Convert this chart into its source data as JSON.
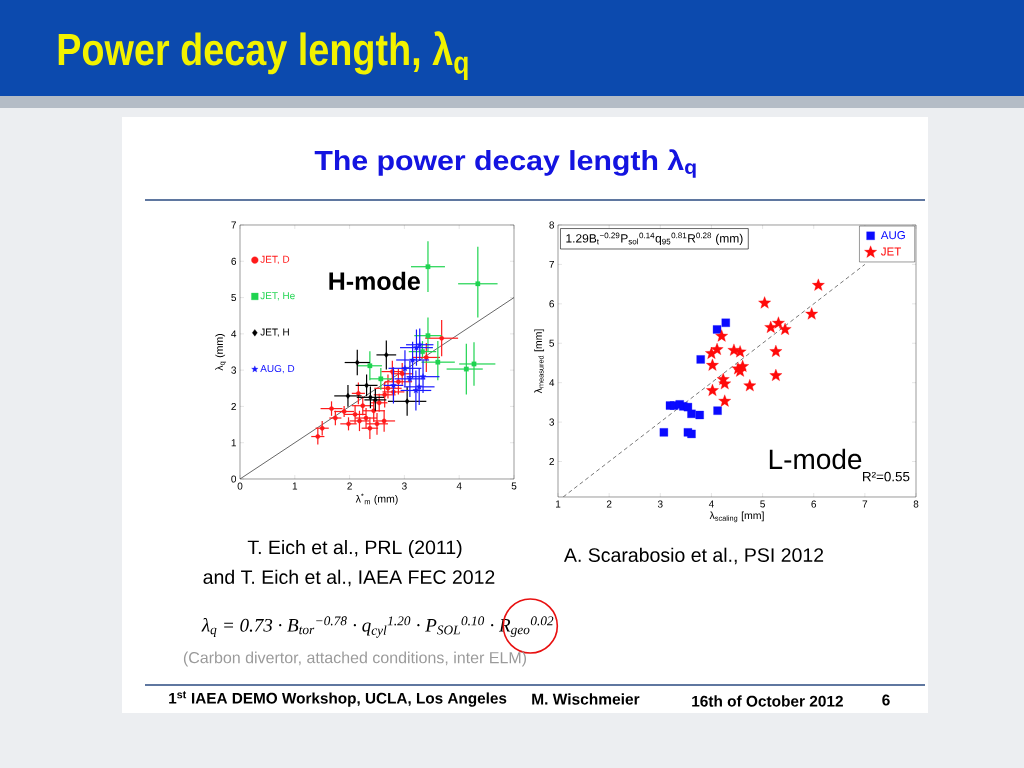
{
  "chart_data": [
    {
      "type": "scatter",
      "title": "Power decay length, λ$_{q}$",
      "subtitle": "The power decay length λ$_{q}$",
      "xlabel": "λ$^{*}$$_{m}$ (mm)",
      "ylabel": "λ$_{q}$ (mm)",
      "xlim": [
        0,
        5
      ],
      "ylim": [
        0,
        7
      ],
      "xticks": [
        0,
        1,
        2,
        3,
        4,
        5
      ],
      "yticks": [
        0,
        1,
        2,
        3,
        4,
        5,
        6,
        7
      ],
      "legend": "top left",
      "series": [
        {
          "type": "line",
          "color": "#404040",
          "marker": "none",
          "line_style": "solid",
          "x": [
            0,
            5
          ],
          "values": [
            0,
            5
          ]
        },
        {
          "name": "JET, D",
          "color": "#ff1a1a",
          "marker": "circle",
          "x": [
            1.42,
            1.5,
            1.67,
            1.74,
            1.9,
            1.98,
            2.1,
            2.24,
            2.3,
            2.18,
            2.37,
            2.44,
            2.5,
            2.63,
            2.16,
            2.64,
            2.7,
            2.78,
            2.89,
            2.96,
            3.4,
            3.68,
            2.8,
            2.54
          ],
          "values": [
            1.17,
            1.4,
            1.94,
            1.68,
            1.86,
            1.52,
            1.78,
            2.02,
            1.68,
            1.6,
            1.4,
            1.88,
            1.52,
            1.6,
            2.36,
            2.32,
            2.5,
            2.96,
            2.68,
            2.9,
            3.35,
            3.88,
            2.4,
            2.1
          ],
          "xerrors": [
            0.12,
            0.12,
            0.2,
            0.11,
            0.18,
            0.15,
            0.2,
            0.2,
            0.2,
            0.18,
            0.15,
            0.2,
            0.2,
            0.2,
            0.12,
            0.2,
            0.25,
            0.2,
            0.25,
            0.2,
            0.25,
            0.3,
            0.2,
            0.15
          ],
          "errors": [
            0.22,
            0.2,
            0.2,
            0.2,
            0.15,
            0.18,
            0.25,
            0.26,
            0.28,
            0.28,
            0.3,
            0.3,
            0.3,
            0.3,
            0.3,
            0.35,
            [
              2.22,
              2.88
            ],
            0.3,
            0.35,
            0.3,
            0.4,
            0.5,
            0.22,
            0.25
          ]
        },
        {
          "name": "JET, He",
          "color": "#1fd450",
          "marker": "square",
          "x": [
            3.43,
            4.34,
            3.43,
            3.61,
            4.13,
            4.27,
            2.37,
            3.33,
            2.57
          ],
          "values": [
            5.85,
            5.38,
            3.95,
            3.22,
            3.03,
            3.17,
            3.12,
            3.51,
            2.76
          ],
          "xerrors": [
            0.31,
            0.36,
            0.25,
            [
              3.31,
              3.92
            ],
            [
              3.77,
              4.43
            ],
            [
              4.0,
              4.66
            ],
            0.22,
            0.25,
            0.2
          ],
          "errors": [
            0.7,
            [
              4.45,
              6.4
            ],
            [
              3.52,
              4.45
            ],
            [
              2.72,
              3.8
            ],
            0.7,
            0.6,
            0.4,
            [
              3.36,
              3.8
            ],
            0.3
          ]
        },
        {
          "name": "JET, H",
          "color": "#000000",
          "marker": "diamond",
          "x": [
            1.97,
            2.14,
            2.31,
            2.38,
            2.47,
            2.67,
            3.05
          ],
          "values": [
            2.29,
            3.21,
            2.58,
            2.25,
            2.18,
            3.42,
            2.14
          ],
          "xerrors": [
            0.25,
            0.23,
            0.2,
            0.25,
            0.2,
            0.18,
            0.35
          ],
          "errors": [
            0.3,
            0.35,
            0.3,
            0.3,
            0.3,
            0.4,
            0.4
          ]
        },
        {
          "name": "AUG, D",
          "color": "#1a1aff",
          "marker": "star",
          "x": [
            3.22,
            3.28,
            3.15,
            3.01,
            3.1,
            3.27,
            3.34,
            3.21,
            2.8
          ],
          "values": [
            3.62,
            3.7,
            3.28,
            3.05,
            2.76,
            2.54,
            2.82,
            2.44,
            2.58
          ],
          "xerrors": [
            0.3,
            0.25,
            0.3,
            0.3,
            0.28,
            0.28,
            0.3,
            0.28,
            0.18
          ],
          "errors": [
            0.5,
            0.45,
            0.5,
            0.5,
            0.5,
            0.5,
            0.45,
            0.55,
            0.5
          ]
        }
      ],
      "annotations": [
        "H-mode",
        "T. Eich et al., PRL (2011)",
        "and T. Eich et al., IAEA FEC 2012",
        "λ$_{q}$ = 0.73 · B$_{tor}$$^{−0.78}$ · q$_{cyl}$$^{1.20}$ · P$_{SOL}$$^{0.10}$ · R$_{geo}$$^{0.02}$",
        "(Carbon divertor, attached conditions, inter ELM)"
      ]
    },
    {
      "type": "scatter",
      "xlabel": "λ$_{scaling}$ [mm]",
      "ylabel": "λ$_{measured}$ [mm]",
      "xlim": [
        1,
        8
      ],
      "ylim": [
        1.1,
        8
      ],
      "xticks": [
        1,
        2,
        3,
        4,
        5,
        6,
        7,
        8
      ],
      "yticks": [
        2,
        3,
        4,
        5,
        6,
        7,
        8
      ],
      "legend": "top right",
      "series": [
        {
          "type": "line",
          "color": "#555555",
          "marker": "none",
          "line_style": "dashed",
          "x": [
            1.1,
            7
          ],
          "values": [
            1.1,
            7
          ]
        },
        {
          "name": "AUG",
          "color": "#0a0aff",
          "marker": "square",
          "x": [
            3.07,
            3.19,
            3.27,
            3.38,
            3.45,
            3.54,
            3.61,
            3.77,
            3.54,
            3.61,
            3.79,
            4.11,
            4.28,
            4.12
          ],
          "values": [
            2.74,
            3.42,
            3.42,
            3.45,
            3.4,
            3.38,
            3.21,
            3.18,
            2.74,
            2.7,
            4.59,
            5.35,
            5.52,
            3.29
          ]
        },
        {
          "name": "JET",
          "color": "#ff0a0a",
          "marker": "star",
          "x": [
            6.09,
            5.04,
            5.96,
            5.16,
            5.31,
            5.44,
            4.2,
            4.0,
            4.11,
            4.44,
            4.56,
            5.26,
            4.02,
            4.52,
            4.61,
            4.56,
            4.23,
            4.26,
            4.75,
            5.26,
            4.02,
            4.26
          ],
          "values": [
            6.47,
            6.02,
            5.74,
            5.4,
            5.51,
            5.35,
            5.18,
            4.74,
            4.84,
            4.82,
            4.78,
            4.79,
            4.44,
            4.35,
            4.41,
            4.29,
            4.08,
            3.97,
            3.92,
            4.18,
            3.8,
            3.53
          ]
        }
      ],
      "annotations": [
        "1.29B$_{t}$$^{−0.29}$P$_{sol}$$^{0.14}$q$_{95}$$^{0.81}$R$^{0.28}$ (mm)",
        "L-mode",
        "R²=0.55",
        "A. Scarabosio et al., PSI 2012",
        "1$^{st}$ IAEA DEMO Workshop, UCLA, Los Angeles",
        "M. Wischmeier",
        "16th of October 2012",
        "6"
      ]
    }
  ]
}
